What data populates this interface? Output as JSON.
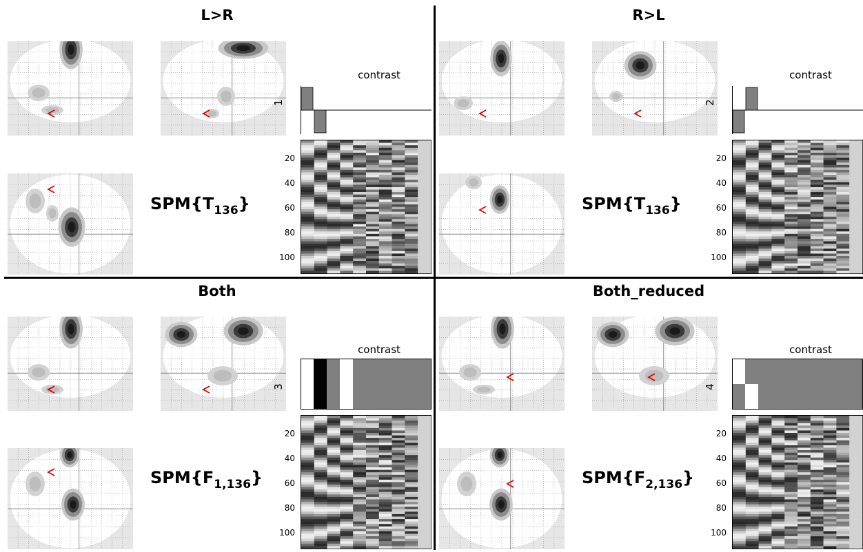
{
  "panels": [
    {
      "title": "L>R",
      "stat_main": "SPM{T",
      "stat_sub": "136",
      "stat_close": "}",
      "contrast_title": "contrast",
      "contrast_index": "1",
      "contrast_type": "t",
      "contrast_weights": [
        1,
        -1,
        0,
        0,
        0,
        0,
        0,
        0,
        0,
        0
      ]
    },
    {
      "title": "R>L",
      "stat_main": "SPM{T",
      "stat_sub": "136",
      "stat_close": "}",
      "contrast_title": "contrast",
      "contrast_index": "2",
      "contrast_type": "t",
      "contrast_weights": [
        -1,
        1,
        0,
        0,
        0,
        0,
        0,
        0,
        0,
        0
      ]
    },
    {
      "title": "Both",
      "stat_main": "SPM{F",
      "stat_sub": "1,136",
      "stat_close": "}",
      "contrast_title": "contrast",
      "contrast_index": "3",
      "contrast_type": "F",
      "contrast_rows": [
        [
          1,
          -1,
          0,
          1,
          0,
          0,
          0,
          0,
          0,
          0
        ]
      ]
    },
    {
      "title": "Both_reduced",
      "stat_main": "SPM{F",
      "stat_sub": "2,136",
      "stat_close": "}",
      "contrast_title": "contrast",
      "contrast_index": "4",
      "contrast_type": "F",
      "contrast_rows": [
        [
          1,
          0,
          0,
          0,
          0,
          0,
          0,
          0,
          0,
          0
        ],
        [
          0,
          1,
          0,
          0,
          0,
          0,
          0,
          0,
          0,
          0
        ]
      ]
    }
  ],
  "design_matrix": {
    "y_ticks": [
      "20",
      "40",
      "60",
      "80",
      "100"
    ],
    "scans": 108,
    "columns": 10
  },
  "colors": {
    "blob": "#1a1a1a",
    "cursor": "#e00000",
    "glass_bg": "#e6e6e6",
    "brain": "#ffffff"
  }
}
